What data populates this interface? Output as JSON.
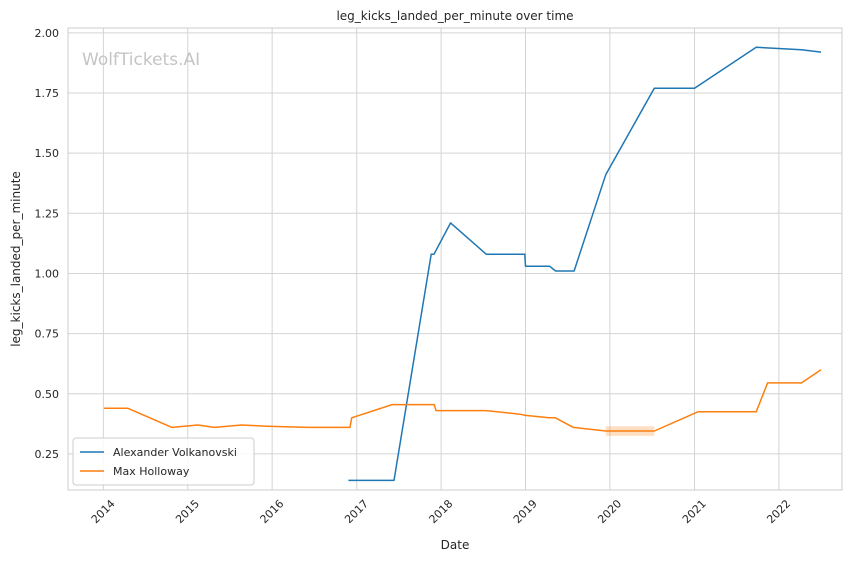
{
  "chart_data": {
    "type": "line",
    "title": "leg_kicks_landed_per_minute over time",
    "xlabel": "Date",
    "ylabel": "leg_kicks_landed_per_minute",
    "watermark": "WolfTickets.AI",
    "x_ticks": [
      "2014",
      "2015",
      "2016",
      "2017",
      "2018",
      "2019",
      "2020",
      "2021",
      "2022"
    ],
    "y_ticks": [
      "0.25",
      "0.50",
      "0.75",
      "1.00",
      "1.25",
      "1.50",
      "1.75",
      "2.00"
    ],
    "xlim": [
      "2013-08-01",
      "2022-10-01"
    ],
    "ylim": [
      0.1,
      2.02
    ],
    "grid": true,
    "legend_position": "lower-left",
    "series": [
      {
        "name": "Alexander Volkanovski",
        "color": "#1f77b4",
        "points": [
          [
            "2016-11-26",
            0.14
          ],
          [
            "2017-06-11",
            0.14
          ],
          [
            "2017-11-19",
            1.08
          ],
          [
            "2017-12-01",
            1.08
          ],
          [
            "2018-02-11",
            1.21
          ],
          [
            "2018-07-15",
            1.08
          ],
          [
            "2018-12-29",
            1.08
          ],
          [
            "2019-01-01",
            1.03
          ],
          [
            "2019-04-15",
            1.03
          ],
          [
            "2019-05-11",
            1.01
          ],
          [
            "2019-07-30",
            1.01
          ],
          [
            "2019-12-14",
            1.41
          ],
          [
            "2020-07-11",
            1.77
          ],
          [
            "2021-01-01",
            1.77
          ],
          [
            "2021-09-25",
            1.94
          ],
          [
            "2022-04-09",
            1.93
          ],
          [
            "2022-07-02",
            1.92
          ]
        ]
      },
      {
        "name": "Max Holloway",
        "color": "#ff7f0e",
        "points": [
          [
            "2014-01-04",
            0.44
          ],
          [
            "2014-04-16",
            0.44
          ],
          [
            "2014-10-25",
            0.36
          ],
          [
            "2015-02-14",
            0.37
          ],
          [
            "2015-04-25",
            0.36
          ],
          [
            "2015-08-23",
            0.37
          ],
          [
            "2015-12-12",
            0.365
          ],
          [
            "2016-06-03",
            0.36
          ],
          [
            "2016-12-03",
            0.36
          ],
          [
            "2016-12-10",
            0.4
          ],
          [
            "2017-06-03",
            0.455
          ],
          [
            "2017-12-02",
            0.455
          ],
          [
            "2017-12-10",
            0.43
          ],
          [
            "2018-07-14",
            0.43
          ],
          [
            "2018-12-08",
            0.415
          ],
          [
            "2019-01-01",
            0.41
          ],
          [
            "2019-04-13",
            0.4
          ],
          [
            "2019-05-10",
            0.4
          ],
          [
            "2019-07-27",
            0.36
          ],
          [
            "2019-12-14",
            0.345
          ],
          [
            "2020-07-11",
            0.345
          ],
          [
            "2021-01-16",
            0.425
          ],
          [
            "2021-09-25",
            0.425
          ],
          [
            "2021-11-13",
            0.545
          ],
          [
            "2022-04-09",
            0.545
          ],
          [
            "2022-07-02",
            0.6
          ]
        ],
        "band": {
          "x": [
            "2019-12-14",
            "2020-07-11"
          ],
          "lower": 0.325,
          "upper": 0.365
        }
      }
    ]
  }
}
